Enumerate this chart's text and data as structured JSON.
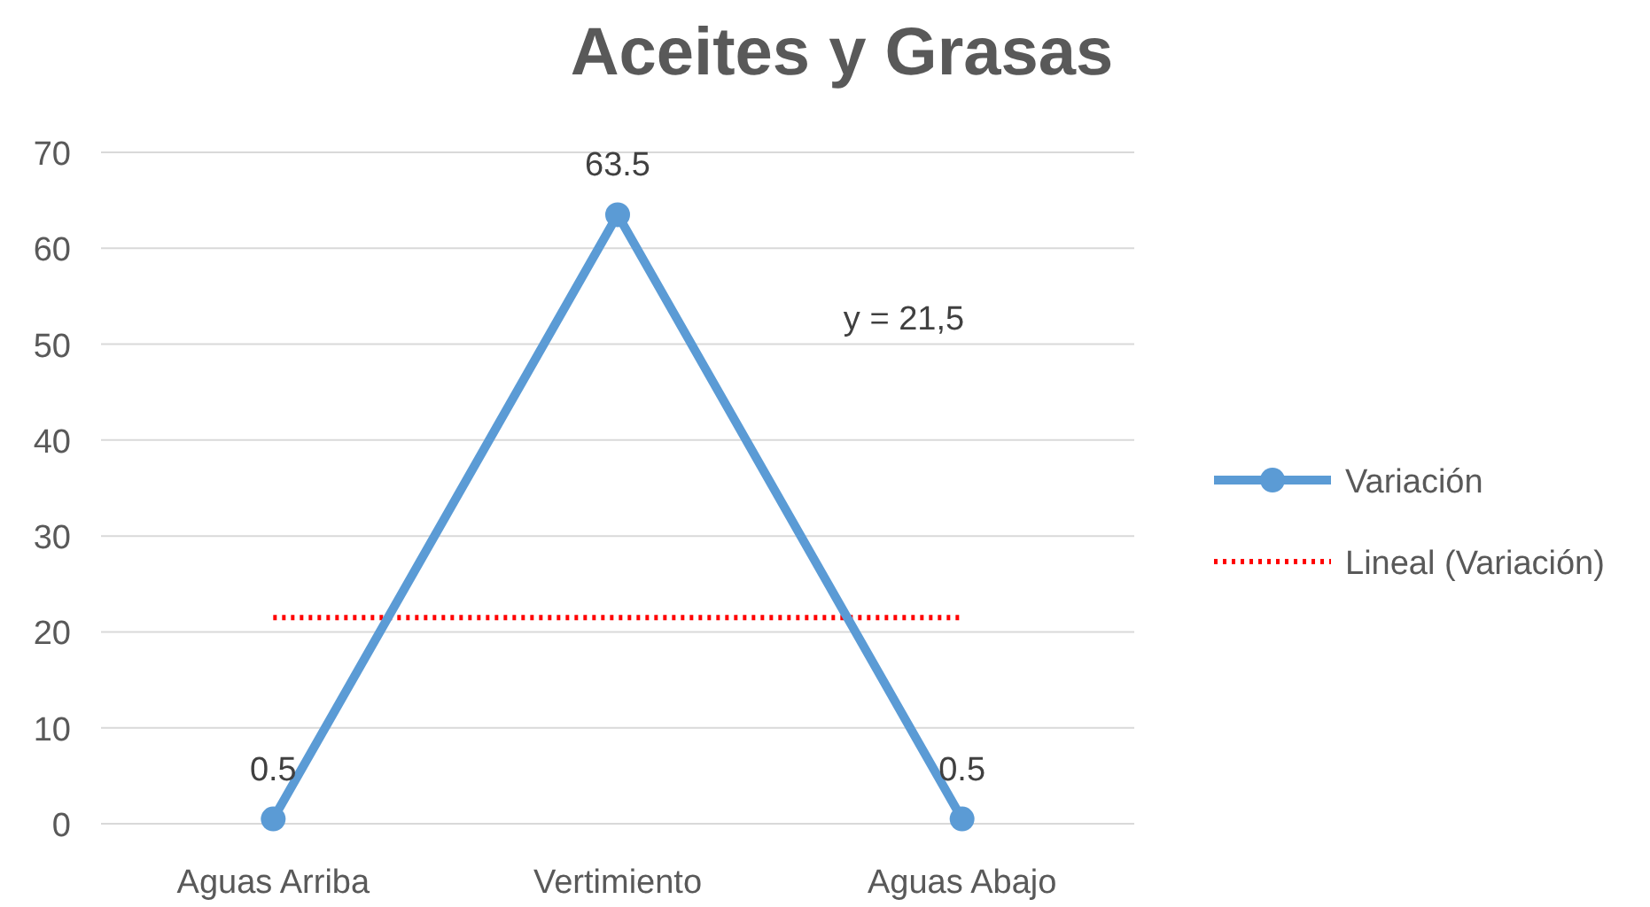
{
  "chart_data": {
    "type": "line",
    "title": "Aceites y Grasas",
    "categories": [
      "Aguas Arriba",
      "Vertimiento",
      "Aguas Abajo"
    ],
    "series": [
      {
        "name": "Variación",
        "color": "#5b9bd5",
        "values": [
          0.5,
          63.5,
          0.5
        ],
        "marker": "circle",
        "line_style": "solid",
        "data_labels": true
      },
      {
        "name": "Lineal (Variación)",
        "color": "#ff0000",
        "values": [
          21.5,
          21.5,
          21.5
        ],
        "marker": "none",
        "line_style": "dotted"
      }
    ],
    "annotations": [
      "y = 21,5"
    ],
    "ylim": [
      0,
      70
    ],
    "yticks": [
      0,
      10,
      20,
      30,
      40,
      50,
      60,
      70
    ],
    "grid": "y",
    "legend": "right"
  }
}
